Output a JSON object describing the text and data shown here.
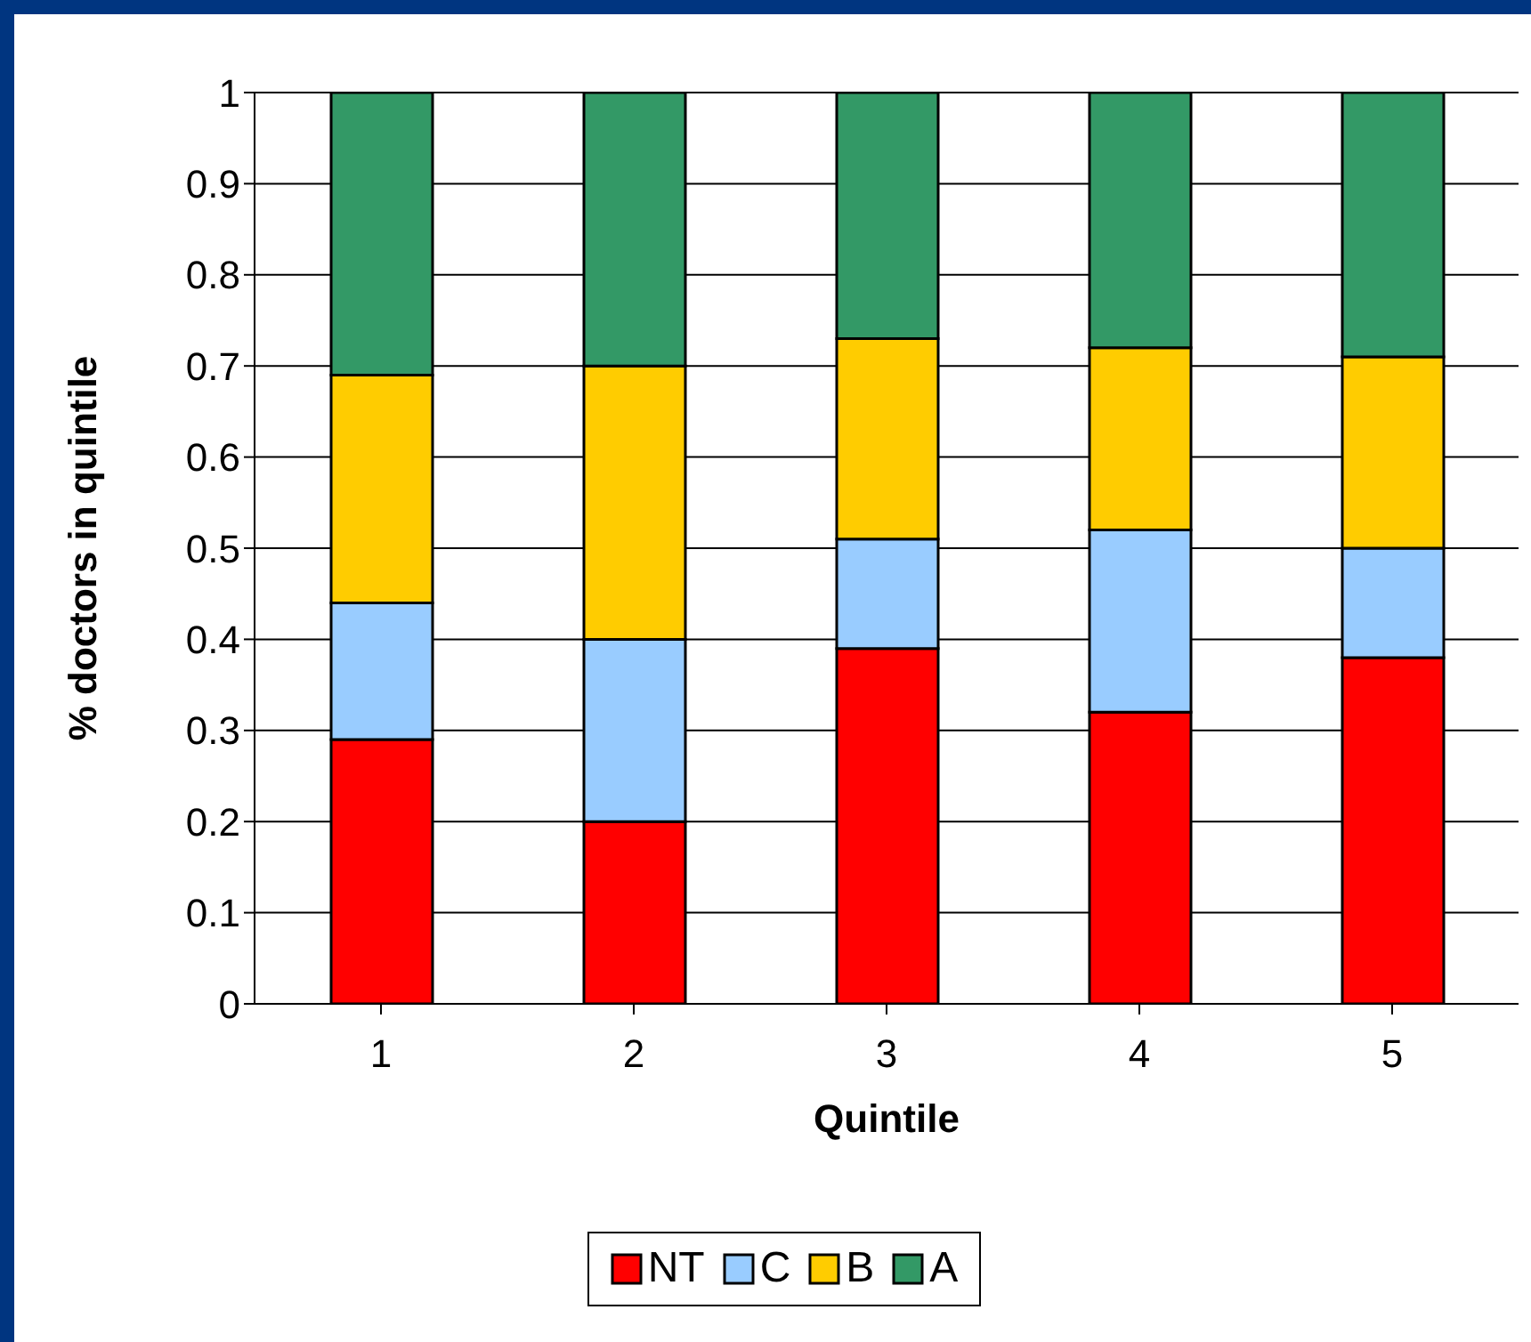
{
  "chart_data": {
    "type": "bar",
    "stacked": true,
    "xlabel": "Quintile",
    "ylabel": "% doctors in quintile",
    "categories": [
      "1",
      "2",
      "3",
      "4",
      "5"
    ],
    "series": [
      {
        "name": "NT",
        "color": "#ff0000",
        "values": [
          0.29,
          0.2,
          0.39,
          0.32,
          0.38
        ]
      },
      {
        "name": "C",
        "color": "#99ccff",
        "values": [
          0.15,
          0.2,
          0.12,
          0.2,
          0.12
        ]
      },
      {
        "name": "B",
        "color": "#ffcc00",
        "values": [
          0.25,
          0.3,
          0.22,
          0.2,
          0.21
        ]
      },
      {
        "name": "A",
        "color": "#339966",
        "values": [
          0.31,
          0.3,
          0.27,
          0.28,
          0.29
        ]
      }
    ],
    "ylim": [
      0,
      1
    ],
    "yticks": [
      0,
      0.1,
      0.2,
      0.3,
      0.4,
      0.5,
      0.6,
      0.7,
      0.8,
      0.9,
      1
    ],
    "grid": "y",
    "legend": "bottom"
  }
}
